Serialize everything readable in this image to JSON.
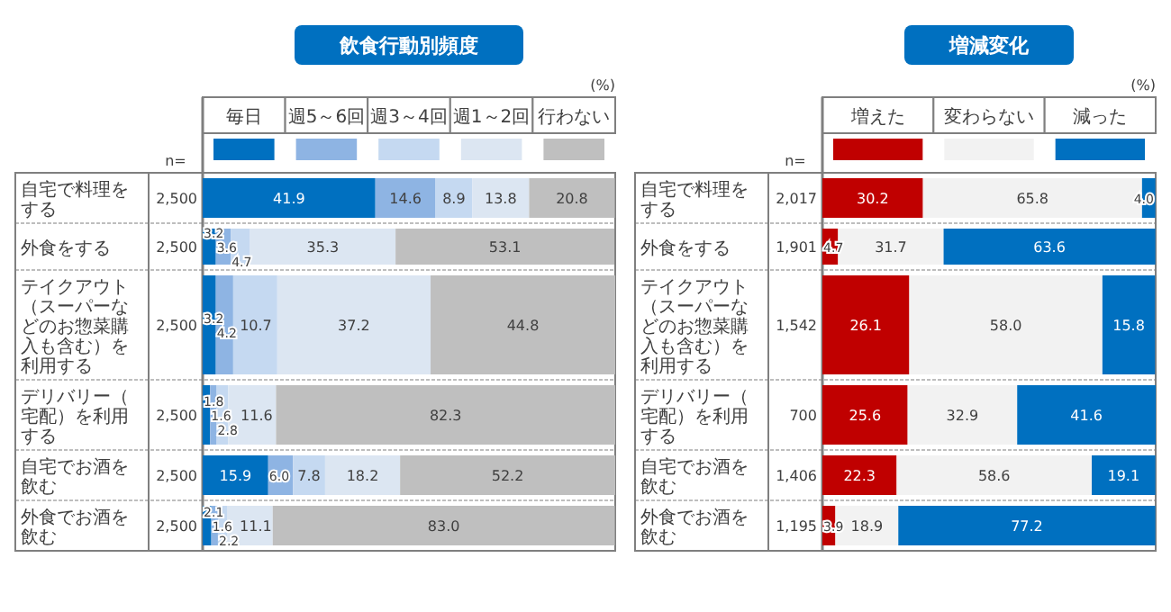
{
  "chart_data": [
    {
      "type": "bar",
      "orientation": "horizontal",
      "stacked": true,
      "title": "飲食行動別頻度",
      "legend": "top",
      "categories": [
        "自宅で料理をする",
        "外食をする",
        "テイクアウト（スーパーなどのお惣菜購入も含む）を利用する",
        "デリバリー（宅配）を利用する",
        "自宅でお酒を飲む",
        "外食でお酒を飲む"
      ],
      "annotations": [
        "(%)",
        "n=",
        "2,500",
        "2,500",
        "2,500",
        "2,500",
        "2,500",
        "2,500"
      ],
      "series": [
        {
          "name": "毎日",
          "color": "#0070c0",
          "values": [
            41.9,
            3.2,
            3.2,
            1.8,
            15.9,
            2.1
          ],
          "value_labels": [
            "41.9",
            "3.2",
            "3.2",
            "1.8",
            "15.9",
            "2.1"
          ]
        },
        {
          "name": "週5～6回",
          "color": "#8eb4e3",
          "values": [
            14.6,
            3.6,
            4.2,
            1.6,
            6.0,
            1.6
          ],
          "value_labels": [
            "14.6",
            "3.6",
            "4.2",
            "1.6",
            "6.0",
            "1.6"
          ]
        },
        {
          "name": "週3～4回",
          "color": "#c5d9f1",
          "values": [
            8.9,
            4.7,
            10.7,
            2.8,
            7.8,
            2.2
          ],
          "value_labels": [
            "8.9",
            "4.7",
            "10.7",
            "2.8",
            "7.8",
            "2.2"
          ]
        },
        {
          "name": "週1～2回",
          "color": "#dce6f2",
          "values": [
            13.8,
            35.3,
            37.2,
            11.6,
            18.2,
            11.1
          ],
          "value_labels": [
            "13.8",
            "35.3",
            "37.2",
            "11.6",
            "18.2",
            "11.1"
          ]
        },
        {
          "name": "行わない",
          "color": "#bfbfbf",
          "values": [
            20.8,
            53.1,
            44.8,
            82.3,
            52.2,
            83.0
          ],
          "value_labels": [
            "20.8",
            "53.1",
            "44.8",
            "82.3",
            "52.2",
            "83.0"
          ]
        }
      ]
    },
    {
      "type": "bar",
      "orientation": "horizontal",
      "stacked": true,
      "title": "増減変化",
      "legend": "top",
      "categories": [
        "自宅で料理をする",
        "外食をする",
        "テイクアウト（スーパーなどのお惣菜購入も含む）を利用する",
        "デリバリー（宅配）を利用する",
        "自宅でお酒を飲む",
        "外食でお酒を飲む"
      ],
      "annotations": [
        "(%)",
        "n=",
        "2,017",
        "1,901",
        "1,542",
        "700",
        "1,406",
        "1,195"
      ],
      "series": [
        {
          "name": "増えた",
          "color": "#c00000",
          "values": [
            30.2,
            4.7,
            26.1,
            25.6,
            22.3,
            3.9
          ],
          "value_labels": [
            "30.2",
            "4.7",
            "26.1",
            "25.6",
            "22.3",
            "3.9"
          ]
        },
        {
          "name": "変わらない",
          "color": "#f2f2f2",
          "values": [
            65.8,
            31.7,
            58.0,
            32.9,
            58.6,
            18.9
          ],
          "value_labels": [
            "65.8",
            "31.7",
            "58.0",
            "32.9",
            "58.6",
            "18.9"
          ]
        },
        {
          "name": "減った",
          "color": "#0070c0",
          "values": [
            4.0,
            63.6,
            15.8,
            41.6,
            19.1,
            77.2
          ],
          "value_labels": [
            "4.0",
            "63.6",
            "15.8",
            "41.6",
            "19.1",
            "77.2"
          ]
        }
      ]
    }
  ]
}
